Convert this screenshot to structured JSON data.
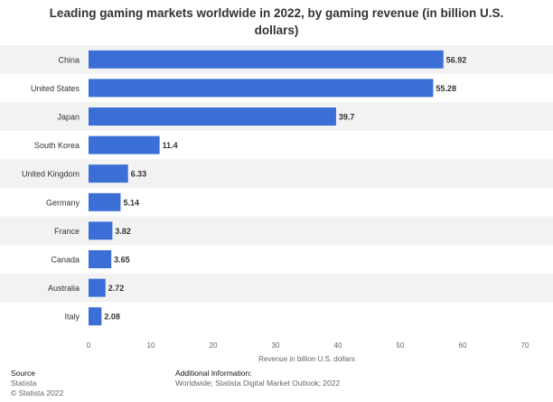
{
  "title": "Leading gaming markets worldwide in 2022, by gaming revenue (in billion U.S. dollars)",
  "title_lines": [
    "Leading gaming markets worldwide in 2022, by gaming revenue (in billion U.S.",
    "dollars)"
  ],
  "footer": {
    "source_label": "Source",
    "source_lines": [
      "Statista",
      "© Statista 2022"
    ],
    "info_label": "Additional Information:",
    "info_text": "Worldwide; Statista Digital Market Outlook; 2022"
  },
  "chart_data": {
    "type": "bar",
    "orientation": "horizontal",
    "title": "Leading gaming markets worldwide in 2022, by gaming revenue (in billion U.S. dollars)",
    "categories": [
      "China",
      "United States",
      "Japan",
      "South Korea",
      "United Kingdom",
      "Germany",
      "France",
      "Canada",
      "Australia",
      "Italy"
    ],
    "values": [
      56.92,
      55.28,
      39.7,
      11.4,
      6.33,
      5.14,
      3.82,
      3.65,
      2.72,
      2.08
    ],
    "value_labels": [
      "56.92",
      "55.28",
      "39.7",
      "11.4",
      "6.33",
      "5.14",
      "3.82",
      "3.65",
      "2.72",
      "2.08"
    ],
    "xlabel": "Revenue in billion U.S. dollars",
    "ylabel": "",
    "xlim": [
      0,
      70
    ],
    "ticks": [
      0,
      10,
      20,
      30,
      40,
      50,
      60,
      70
    ],
    "tick_labels": [
      "0",
      "10",
      "20",
      "30",
      "40",
      "50",
      "60",
      "70"
    ],
    "bar_color": "#3b6fd6",
    "band_color": "#f2f2f2",
    "grid": false,
    "legend": "none"
  }
}
